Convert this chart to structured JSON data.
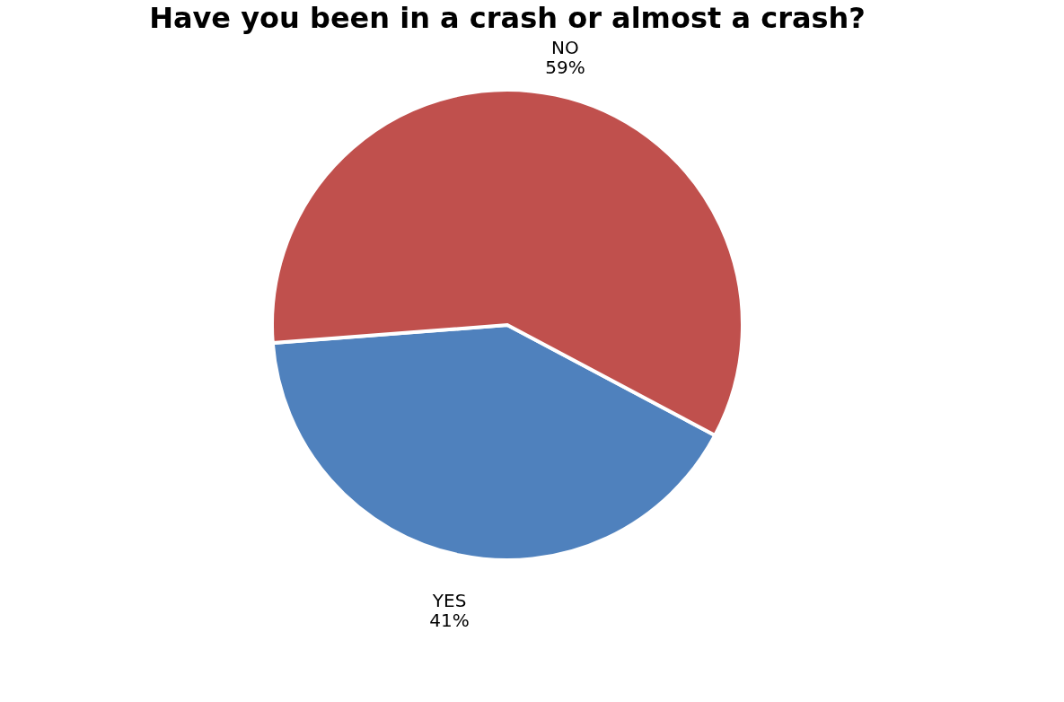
{
  "chart_data": {
    "type": "pie",
    "title": "Have you been in a crash or almost a crash?",
    "categories": [
      "YES",
      "NO"
    ],
    "values": [
      41,
      59
    ],
    "colors": [
      "#4f81bd",
      "#c0504d"
    ],
    "value_labels": [
      "41%",
      "59%"
    ],
    "legend": false
  }
}
